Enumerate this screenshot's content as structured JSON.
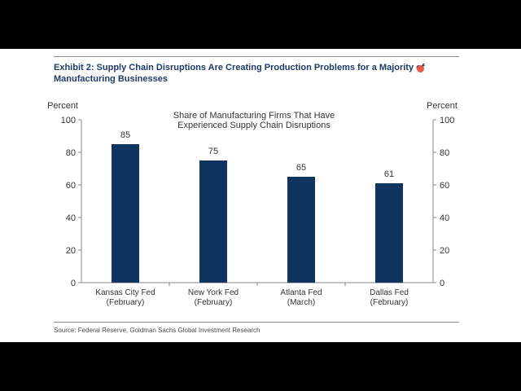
{
  "exhibit": {
    "title": "Exhibit 2: Supply Chain Disruptions Are Creating Production Problems for a Majority of Manufacturing Businesses",
    "source": "Source: Federal Reserve, Goldman Sachs Global Investment Research"
  },
  "chart_data": {
    "type": "bar",
    "title": "Share of Manufacturing Firms That Have\nExperienced Supply Chain Disruptions",
    "ylabel_left": "Percent",
    "ylabel_right": "Percent",
    "xlabel": "",
    "ylim": [
      0,
      100
    ],
    "yticks": [
      0,
      20,
      40,
      60,
      80,
      100
    ],
    "categories": [
      "Kansas City Fed\n(February)",
      "New York Fed\n(February)",
      "Atlanta Fed\n(March)",
      "Dallas Fed\n(February)"
    ],
    "values": [
      85,
      75,
      65,
      61
    ],
    "data_labels": [
      "85",
      "75",
      "65",
      "61"
    ],
    "grid": false,
    "legend": "none",
    "bar_color": "#0f3460"
  }
}
